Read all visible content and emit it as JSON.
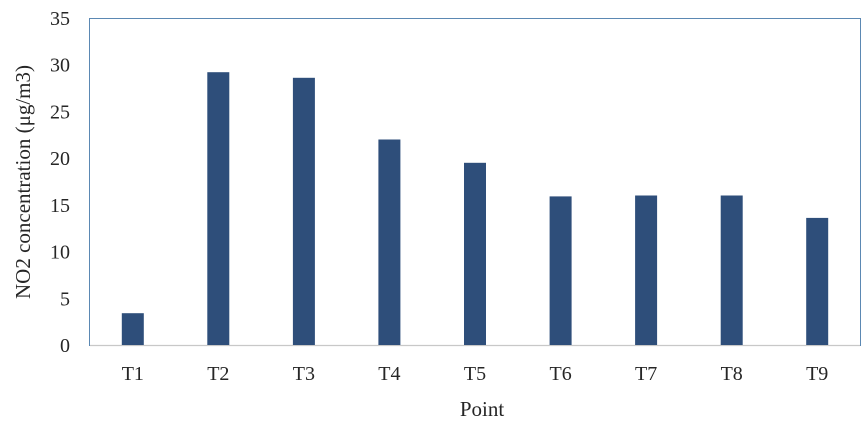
{
  "chart_data": {
    "type": "bar",
    "categories": [
      "T1",
      "T2",
      "T3",
      "T4",
      "T5",
      "T6",
      "T7",
      "T8",
      "T9"
    ],
    "values": [
      3.4,
      29.2,
      28.6,
      22.0,
      19.5,
      15.9,
      16.0,
      16.0,
      13.6
    ],
    "title": "",
    "xlabel": "Point",
    "ylabel": "NO2 concentration (μg/m3)",
    "ylim": [
      0,
      35
    ],
    "yticks": [
      0,
      5,
      10,
      15,
      20,
      25,
      30,
      35
    ],
    "grid": false,
    "legend": "none",
    "colors": {
      "bar": "#2e4e7a",
      "frame": "#5b88b3",
      "baseline": "#c8c8c8"
    }
  }
}
